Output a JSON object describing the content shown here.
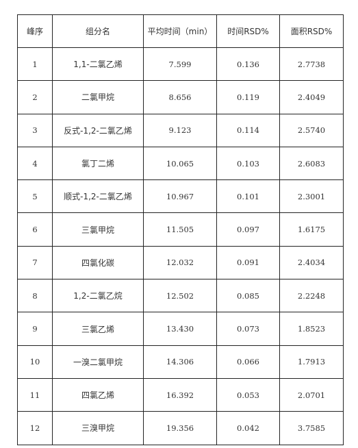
{
  "table": {
    "headers": [
      "峰序",
      "组分名",
      "平均时间（min）",
      "时间RSD%",
      "面积RSD%"
    ],
    "rows": [
      [
        "1",
        "1,1-二氯乙烯",
        "7.599",
        "0.136",
        "2.7738"
      ],
      [
        "2",
        "二氯甲烷",
        "8.656",
        "0.119",
        "2.4049"
      ],
      [
        "3",
        "反式-1,2-二氯乙烯",
        "9.123",
        "0.114",
        "2.5740"
      ],
      [
        "4",
        "氯丁二烯",
        "10.065",
        "0.103",
        "2.6083"
      ],
      [
        "5",
        "顺式-1,2-二氯乙烯",
        "10.967",
        "0.101",
        "2.3001"
      ],
      [
        "6",
        "三氯甲烷",
        "11.505",
        "0.097",
        "1.6175"
      ],
      [
        "7",
        "四氯化碳",
        "12.032",
        "0.091",
        "2.4034"
      ],
      [
        "8",
        "1,2-二氯乙烷",
        "12.502",
        "0.085",
        "2.2248"
      ],
      [
        "9",
        "三氯乙烯",
        "13.430",
        "0.073",
        "1.8523"
      ],
      [
        "10",
        "一溴二氯甲烷",
        "14.306",
        "0.066",
        "1.7913"
      ],
      [
        "11",
        "四氯乙烯",
        "16.392",
        "0.053",
        "2.0701"
      ],
      [
        "12",
        "三溴甲烷",
        "19.356",
        "0.042",
        "3.7585"
      ]
    ]
  }
}
